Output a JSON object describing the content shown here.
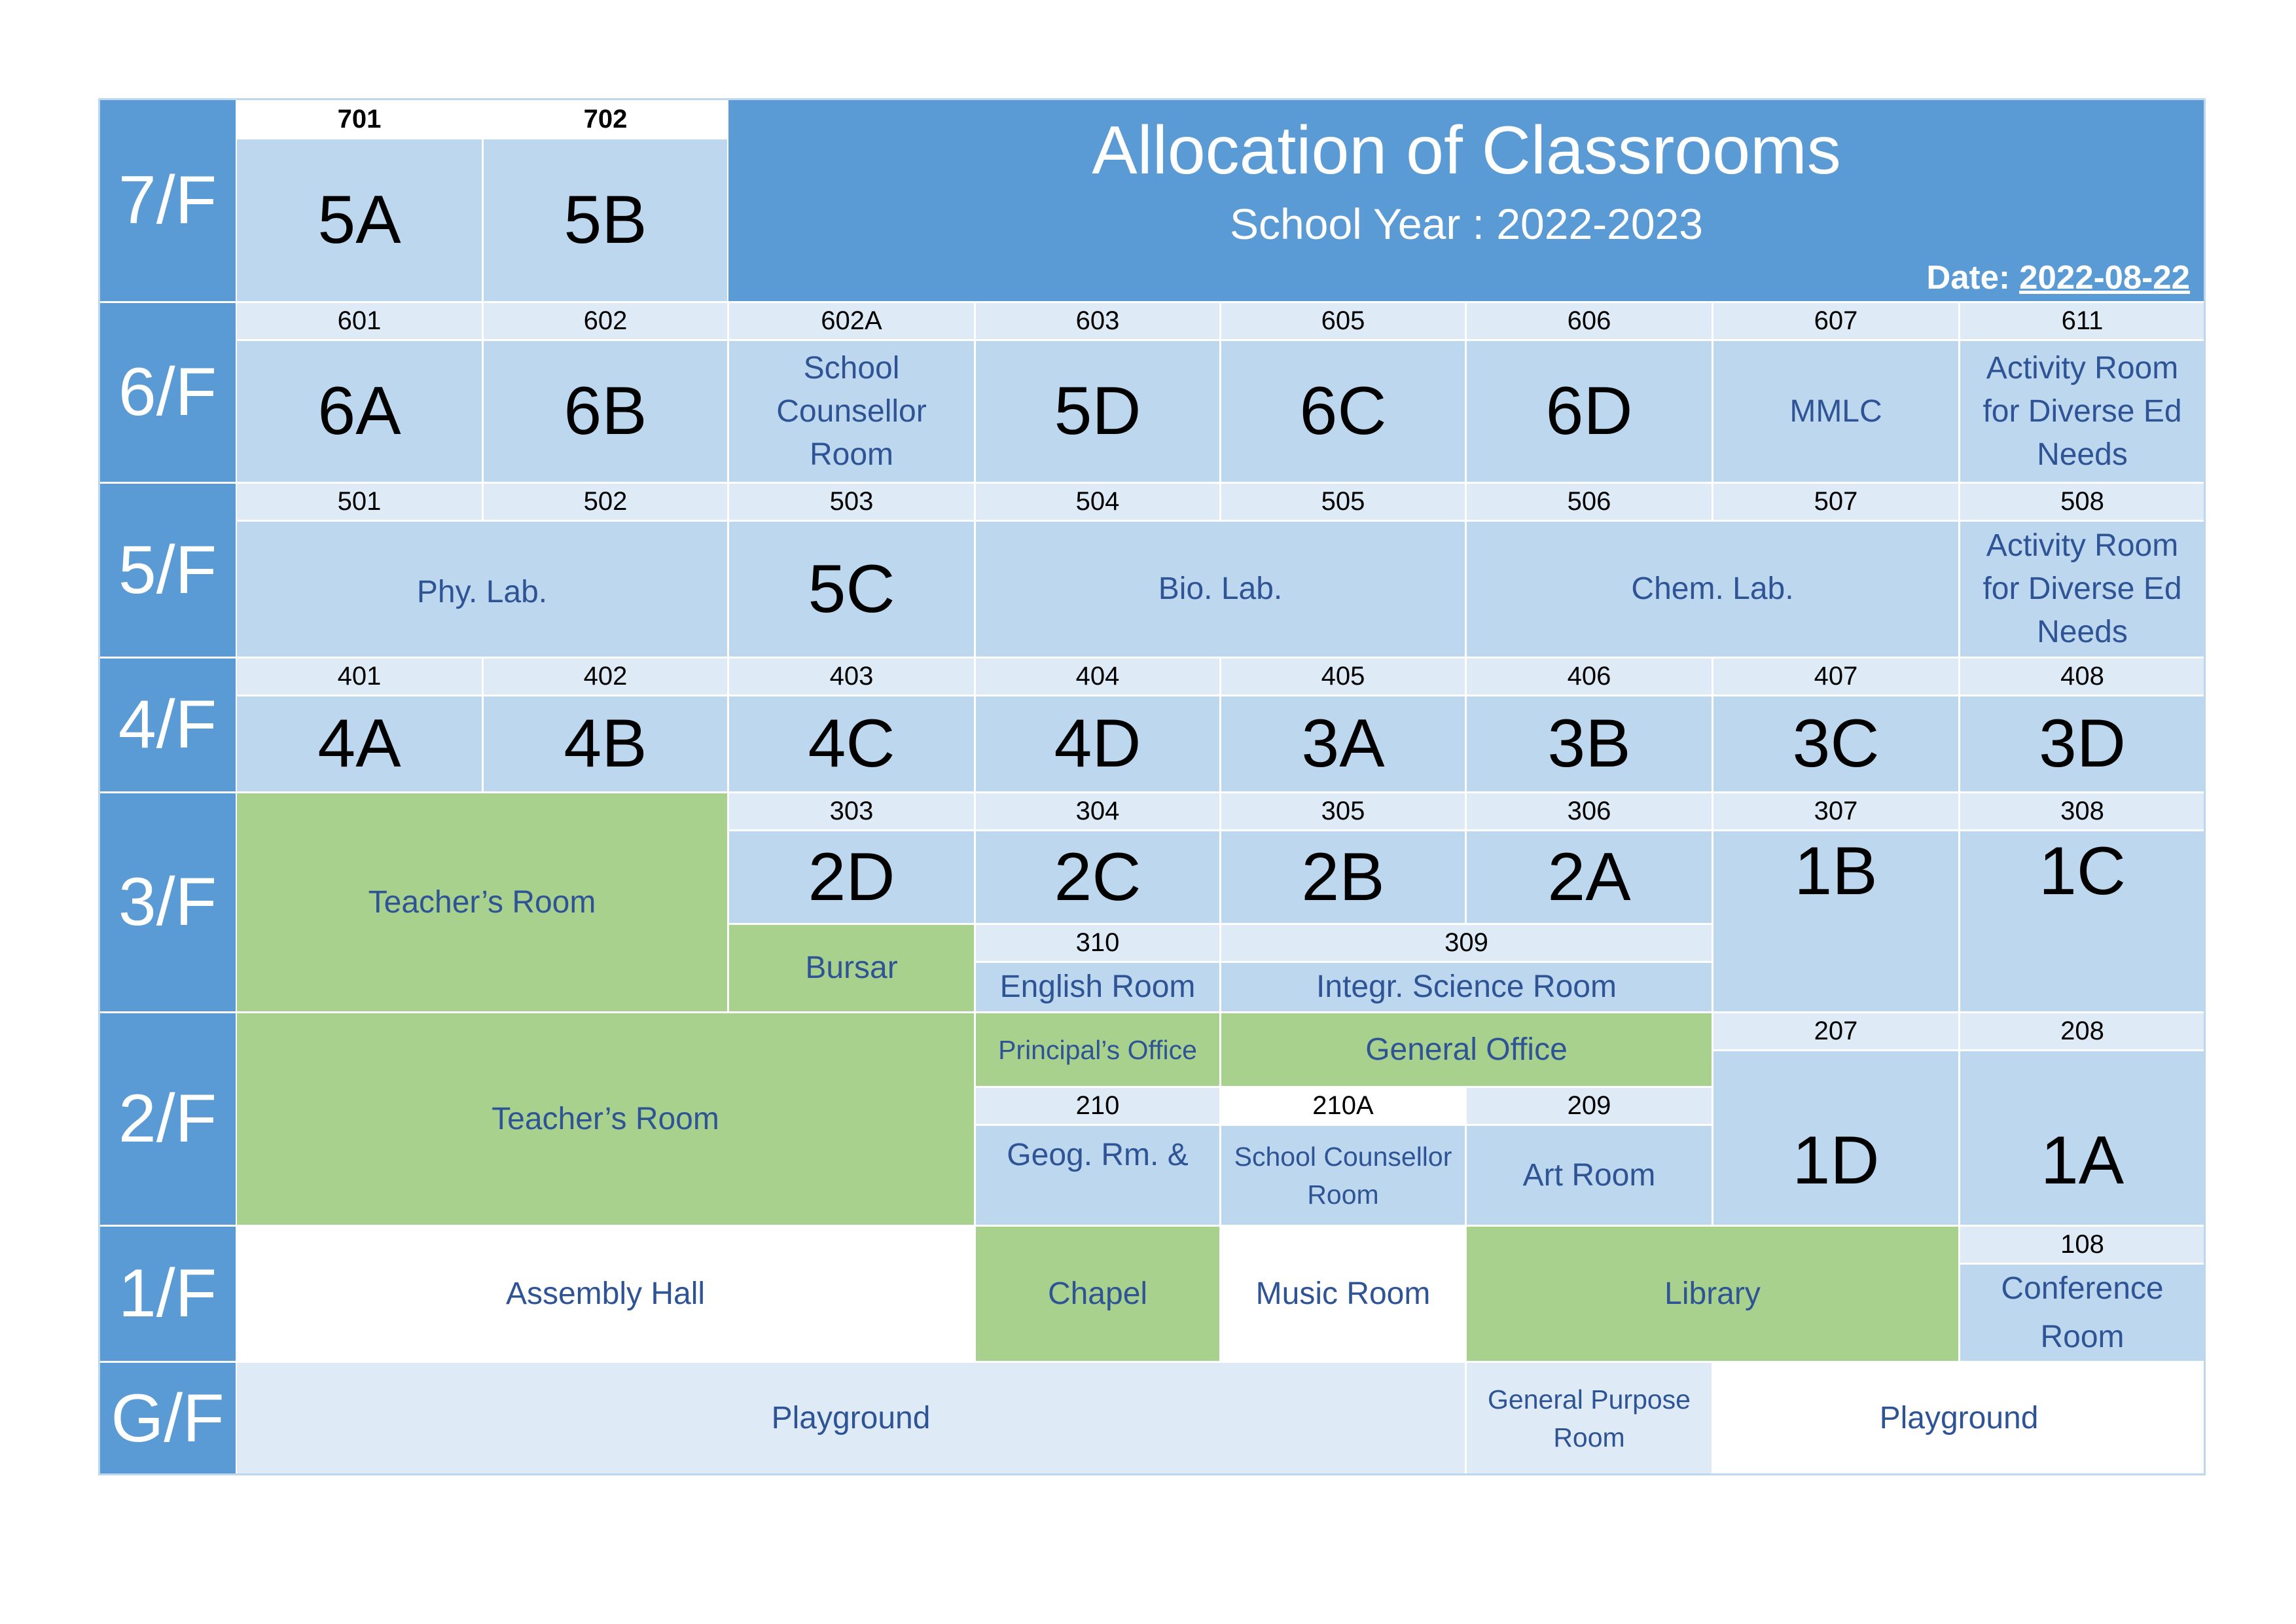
{
  "header": {
    "title": "Allocation of Classrooms",
    "subtitle": "School Year : 2022-2023",
    "date_label": "Date: ",
    "date_value": "2022-08-22"
  },
  "floors": {
    "f7": {
      "label": "7/F",
      "rooms": [
        {
          "number": "701",
          "name": "5A"
        },
        {
          "number": "702",
          "name": "5B"
        }
      ]
    },
    "f6": {
      "label": "6/F",
      "rooms": [
        {
          "number": "601",
          "name": "6A"
        },
        {
          "number": "602",
          "name": "6B"
        },
        {
          "number": "602A",
          "name": "School Counsellor Room"
        },
        {
          "number": "603",
          "name": "5D"
        },
        {
          "number": "605",
          "name": "6C"
        },
        {
          "number": "606",
          "name": "6D"
        },
        {
          "number": "607",
          "name": "MMLC"
        },
        {
          "number": "611",
          "name": "Activity Room for Diverse Ed Needs"
        }
      ]
    },
    "f5": {
      "label": "5/F",
      "numbers": [
        "501",
        "502",
        "503",
        "504",
        "505",
        "506",
        "507",
        "508"
      ],
      "rooms": [
        {
          "name": "Phy. Lab."
        },
        {
          "name": "5C"
        },
        {
          "name": "Bio. Lab."
        },
        {
          "name": "Chem. Lab."
        },
        {
          "name": "Activity Room for Diverse Ed Needs"
        }
      ]
    },
    "f4": {
      "label": "4/F",
      "rooms": [
        {
          "number": "401",
          "name": "4A"
        },
        {
          "number": "402",
          "name": "4B"
        },
        {
          "number": "403",
          "name": "4C"
        },
        {
          "number": "404",
          "name": "4D"
        },
        {
          "number": "405",
          "name": "3A"
        },
        {
          "number": "406",
          "name": "3B"
        },
        {
          "number": "407",
          "name": "3C"
        },
        {
          "number": "408",
          "name": "3D"
        }
      ]
    },
    "f3": {
      "label": "3/F",
      "teachers_room": "Teacher’s Room",
      "rooms": [
        {
          "number": "303",
          "name": "2D"
        },
        {
          "number": "304",
          "name": "2C"
        },
        {
          "number": "305",
          "name": "2B"
        },
        {
          "number": "306",
          "name": "2A"
        },
        {
          "number": "307",
          "name": "1B"
        },
        {
          "number": "308",
          "name": "1C"
        }
      ],
      "bursar": "Bursar",
      "english_room": {
        "number": "310",
        "name": "English Room"
      },
      "science_room": {
        "number": "309",
        "name": "Integr. Science Room"
      }
    },
    "f2": {
      "label": "2/F",
      "teachers_room": "Teacher’s Room",
      "principals_office": "Principal’s Office",
      "general_office": "General Office",
      "geog_room": {
        "number": "210",
        "name": "Geog. Rm. &"
      },
      "counsellor_room": {
        "number": "210A",
        "name": "School Counsellor Room"
      },
      "art_room": {
        "number": "209",
        "name": "Art Room"
      },
      "rooms": [
        {
          "number": "207",
          "name": "1D"
        },
        {
          "number": "208",
          "name": "1A"
        }
      ]
    },
    "f1": {
      "label": "1/F",
      "assembly_hall": "Assembly Hall",
      "chapel": "Chapel",
      "music_room": "Music Room",
      "library": "Library",
      "conference_room": {
        "number": "108",
        "name": "Conference Room"
      }
    },
    "gf": {
      "label": "G/F",
      "playground_left": "Playground",
      "general_purpose_room": "General Purpose Room",
      "playground_right": "Playground"
    }
  },
  "colors": {
    "floor_band": "#5b9bd5",
    "classroom": "#bdd7ee",
    "room_number": "#deebf7",
    "staff_area": "#a9d18e",
    "text_blue": "#2f5496"
  }
}
